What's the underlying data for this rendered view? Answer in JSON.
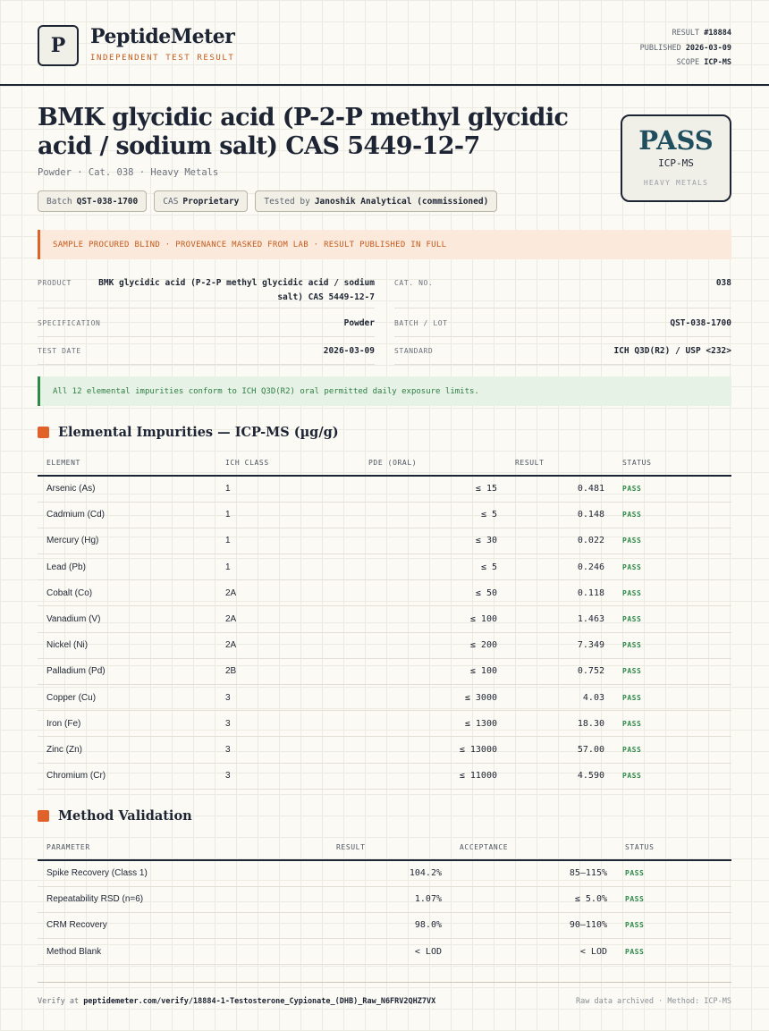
{
  "header": {
    "logo_letter": "P",
    "brand_name": "PeptideMeter",
    "brand_tagline": "INDEPENDENT TEST RESULT",
    "result_label": "RESULT",
    "result_value": "#18884",
    "published_label": "PUBLISHED",
    "published_value": "2026-03-09",
    "scope_label": "SCOPE",
    "scope_value": "ICP-MS"
  },
  "product": {
    "title": "BMK glycidic acid (P-2-P methyl glycidic acid / sodium salt) CAS 5449-12-7",
    "subtitle": "Powder · Cat. 038 · Heavy Metals",
    "chips": [
      {
        "label": "Batch",
        "value": "QST-038-1700"
      },
      {
        "label": "CAS",
        "value": "Proprietary"
      },
      {
        "label": "Tested by",
        "value": "Janoshik Analytical (commissioned)"
      }
    ]
  },
  "badge": {
    "verdict": "PASS",
    "method": "ICP-MS",
    "category": "HEAVY METALS"
  },
  "warning_banner": "SAMPLE PROCURED BLIND · PROVENANCE MASKED FROM LAB · RESULT PUBLISHED IN FULL",
  "info": {
    "product_label": "PRODUCT",
    "product_value": "BMK glycidic acid (P-2-P methyl glycidic acid / sodium salt) CAS 5449-12-7",
    "cat_label": "CAT. NO.",
    "cat_value": "038",
    "spec_label": "SPECIFICATION",
    "spec_value": "Powder",
    "batch_label": "BATCH / LOT",
    "batch_value": "QST-038-1700",
    "date_label": "TEST DATE",
    "date_value": "2026-03-09",
    "standard_label": "STANDARD",
    "standard_value": "ICH Q3D(R2) / USP <232>"
  },
  "ok_banner": "All 12 elemental impurities conform to ICH Q3D(R2) oral permitted daily exposure limits.",
  "impurities": {
    "title": "Elemental Impurities — ICP-MS (µg/g)",
    "columns": [
      "ELEMENT",
      "ICH CLASS",
      "PDE (ORAL)",
      "RESULT",
      "STATUS"
    ],
    "rows": [
      {
        "element": "Arsenic (As)",
        "cls": "1",
        "pde": "≤ 15",
        "result": "0.481",
        "status": "PASS"
      },
      {
        "element": "Cadmium (Cd)",
        "cls": "1",
        "pde": "≤ 5",
        "result": "0.148",
        "status": "PASS"
      },
      {
        "element": "Mercury (Hg)",
        "cls": "1",
        "pde": "≤ 30",
        "result": "0.022",
        "status": "PASS"
      },
      {
        "element": "Lead (Pb)",
        "cls": "1",
        "pde": "≤ 5",
        "result": "0.246",
        "status": "PASS"
      },
      {
        "element": "Cobalt (Co)",
        "cls": "2A",
        "pde": "≤ 50",
        "result": "0.118",
        "status": "PASS"
      },
      {
        "element": "Vanadium (V)",
        "cls": "2A",
        "pde": "≤ 100",
        "result": "1.463",
        "status": "PASS"
      },
      {
        "element": "Nickel (Ni)",
        "cls": "2A",
        "pde": "≤ 200",
        "result": "7.349",
        "status": "PASS"
      },
      {
        "element": "Palladium (Pd)",
        "cls": "2B",
        "pde": "≤ 100",
        "result": "0.752",
        "status": "PASS"
      },
      {
        "element": "Copper (Cu)",
        "cls": "3",
        "pde": "≤ 3000",
        "result": "4.03",
        "status": "PASS"
      },
      {
        "element": "Iron (Fe)",
        "cls": "3",
        "pde": "≤ 1300",
        "result": "18.30",
        "status": "PASS"
      },
      {
        "element": "Zinc (Zn)",
        "cls": "3",
        "pde": "≤ 13000",
        "result": "57.00",
        "status": "PASS"
      },
      {
        "element": "Chromium (Cr)",
        "cls": "3",
        "pde": "≤ 11000",
        "result": "4.590",
        "status": "PASS"
      }
    ]
  },
  "validation": {
    "title": "Method Validation",
    "columns": [
      "PARAMETER",
      "RESULT",
      "ACCEPTANCE",
      "STATUS"
    ],
    "rows": [
      {
        "parameter": "Spike Recovery (Class 1)",
        "result": "104.2%",
        "acceptance": "85–115%",
        "status": "PASS"
      },
      {
        "parameter": "Repeatability RSD (n=6)",
        "result": "1.07%",
        "acceptance": "≤ 5.0%",
        "status": "PASS"
      },
      {
        "parameter": "CRM Recovery",
        "result": "98.0%",
        "acceptance": "90–110%",
        "status": "PASS"
      },
      {
        "parameter": "Method Blank",
        "result": "< LOD",
        "acceptance": "< LOD",
        "status": "PASS"
      }
    ]
  },
  "footer": {
    "verify_label": "Verify at",
    "verify_url": "peptidemeter.com/verify/18884-1-Testosterone_Cypionate_(DHB)_Raw_N6FRV2QHZ7VX",
    "right_text": "Raw data archived · Method: ICP-MS"
  },
  "colors": {
    "accent": "#e0622a",
    "ink": "#1d2433",
    "pass_green": "#2e8a4a",
    "badge_teal": "#1f4e5f"
  }
}
